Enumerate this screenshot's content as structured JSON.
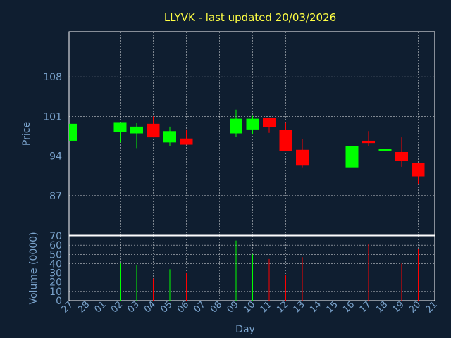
{
  "chart_data": {
    "type": "candlestick",
    "title": "LLYVK - last updated 20/03/2026",
    "xlabel": "Day",
    "colors": {
      "up": "#00ff00",
      "down": "#ff0000",
      "background": "#0f1e30",
      "title": "#ffff44",
      "axis_text": "#7aa3cc"
    },
    "x_ticks": [
      "27",
      "28",
      "01",
      "02",
      "03",
      "04",
      "05",
      "06",
      "07",
      "08",
      "09",
      "10",
      "11",
      "12",
      "13",
      "14",
      "15",
      "16",
      "17",
      "18",
      "19",
      "20",
      "21"
    ],
    "price_panel": {
      "ylabel": "Price",
      "ylim": [
        80,
        116
      ],
      "yticks": [
        87,
        94,
        101,
        108
      ]
    },
    "volume_panel": {
      "ylabel": "Volume (0000)",
      "ylim": [
        0,
        70
      ],
      "yticks": [
        0,
        10,
        20,
        30,
        40,
        50,
        60,
        70
      ],
      "tick_labels": [
        "0",
        "10",
        "20",
        "30",
        "40",
        "50",
        "60",
        "70"
      ]
    },
    "candles": [
      {
        "day": "27",
        "open": 96.7,
        "close": 99.7,
        "high": 99.7,
        "low": 96.7,
        "volume": 0
      },
      {
        "day": "02",
        "open": 98.3,
        "close": 100.0,
        "high": 100.0,
        "low": 96.4,
        "volume": 40
      },
      {
        "day": "03",
        "open": 98.0,
        "close": 99.2,
        "high": 99.9,
        "low": 95.4,
        "volume": 38
      },
      {
        "day": "04",
        "open": 99.7,
        "close": 97.3,
        "high": 101.0,
        "low": 97.3,
        "volume": 24
      },
      {
        "day": "05",
        "open": 96.4,
        "close": 98.4,
        "high": 99.2,
        "low": 95.8,
        "volume": 34
      },
      {
        "day": "06",
        "open": 97.1,
        "close": 96.0,
        "high": 98.7,
        "low": 96.0,
        "volume": 30
      },
      {
        "day": "09",
        "open": 98.0,
        "close": 100.6,
        "high": 102.2,
        "low": 97.4,
        "volume": 65
      },
      {
        "day": "10",
        "open": 98.7,
        "close": 100.6,
        "high": 101.1,
        "low": 97.8,
        "volume": 50
      },
      {
        "day": "11",
        "open": 100.7,
        "close": 99.1,
        "high": 100.7,
        "low": 98.1,
        "volume": 45
      },
      {
        "day": "12",
        "open": 98.6,
        "close": 94.9,
        "high": 100.0,
        "low": 94.9,
        "volume": 28
      },
      {
        "day": "13",
        "open": 95.1,
        "close": 92.3,
        "high": 97.0,
        "low": 92.0,
        "volume": 47
      },
      {
        "day": "16",
        "open": 92.0,
        "close": 95.7,
        "high": 95.7,
        "low": 89.3,
        "volume": 37
      },
      {
        "day": "17",
        "open": 96.7,
        "close": 96.3,
        "high": 98.4,
        "low": 95.8,
        "volume": 61
      },
      {
        "day": "18",
        "open": 95.0,
        "close": 95.2,
        "high": 97.1,
        "low": 94.8,
        "volume": 41
      },
      {
        "day": "19",
        "open": 94.7,
        "close": 93.1,
        "high": 97.3,
        "low": 92.1,
        "volume": 40
      },
      {
        "day": "20",
        "open": 92.8,
        "close": 90.4,
        "high": 92.8,
        "low": 89.0,
        "volume": 56
      }
    ]
  }
}
